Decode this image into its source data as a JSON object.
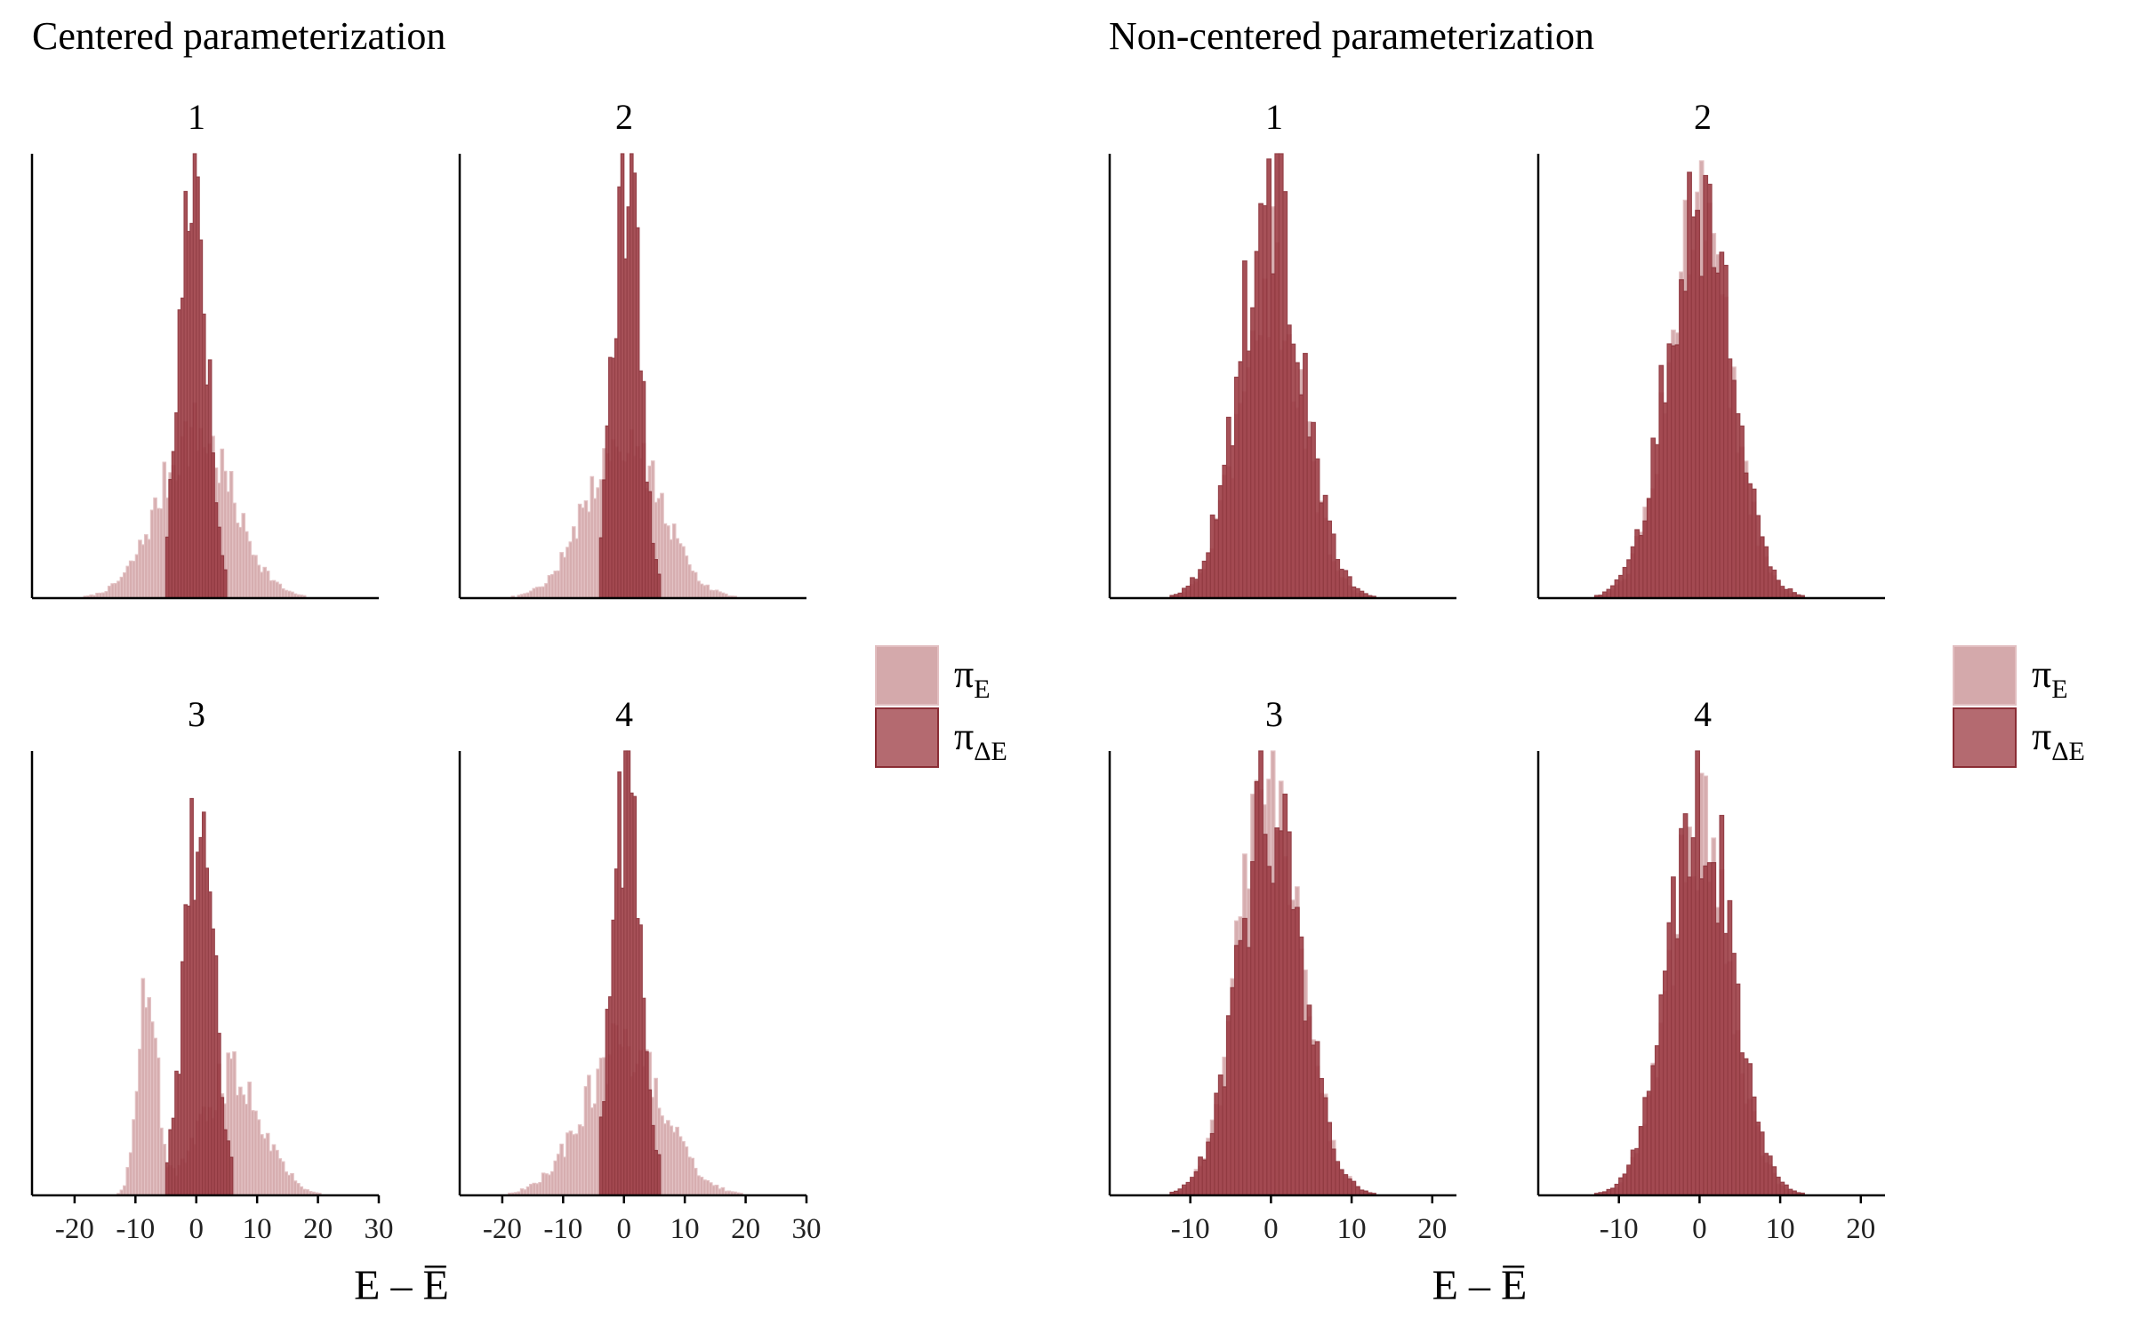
{
  "colors": {
    "pi_E_fill": "#d4a9ab",
    "pi_E_stroke": "#e2bfc1",
    "pi_dE_fill": "#9e3f47",
    "pi_dE_stroke": "#8a2d35",
    "axis": "#000000"
  },
  "legend": {
    "items": [
      {
        "symbol": "π",
        "sub": "E",
        "color_key": "pi_E"
      },
      {
        "symbol": "π",
        "sub": "ΔE",
        "color_key": "pi_dE"
      }
    ]
  },
  "chart_data": [
    {
      "type": "histogram",
      "title": "Centered parameterization",
      "xlabel": "E – E̅",
      "xlim": [
        -27,
        30
      ],
      "xticks": [
        -20,
        -10,
        0,
        10,
        20,
        30
      ],
      "xtick_labels": [
        "-20",
        "-10",
        "0",
        "10",
        "20",
        "30"
      ],
      "y_axis_labels": false,
      "bin_width": 0.5,
      "legend": "right",
      "facets": [
        {
          "label": "1",
          "series": [
            {
              "name": "π_E",
              "shape": "normal",
              "mean": 0,
              "sd": 6.0,
              "peak": 0.37,
              "range": [
                -19,
                23
              ]
            },
            {
              "name": "π_ΔE",
              "shape": "normal",
              "mean": -0.5,
              "sd": 2.2,
              "peak": 1.0,
              "range": [
                -5,
                5
              ]
            }
          ]
        },
        {
          "label": "2",
          "series": [
            {
              "name": "π_E",
              "shape": "normal",
              "mean": 0,
              "sd": 6.0,
              "peak": 0.37,
              "range": [
                -19,
                23
              ]
            },
            {
              "name": "π_ΔE",
              "shape": "normal",
              "mean": 0.5,
              "sd": 2.2,
              "peak": 0.97,
              "range": [
                -4,
                6
              ]
            }
          ]
        },
        {
          "label": "3",
          "series": [
            {
              "name": "π_E",
              "shape": "bimodal",
              "means": [
                -8,
                6
              ],
              "sds": [
                1.5,
                5.0
              ],
              "peaks": [
                0.53,
                0.27
              ],
              "range": [
                -19,
                23
              ]
            },
            {
              "name": "π_ΔE",
              "shape": "normal",
              "mean": 0.5,
              "sd": 2.4,
              "peak": 0.87,
              "range": [
                -5,
                6
              ]
            }
          ]
        },
        {
          "label": "4",
          "series": [
            {
              "name": "π_E",
              "shape": "normal",
              "mean": 0,
              "sd": 6.5,
              "peak": 0.33,
              "range": [
                -19,
                23
              ]
            },
            {
              "name": "π_ΔE",
              "shape": "normal",
              "mean": 0.5,
              "sd": 2.4,
              "peak": 0.9,
              "range": [
                -4,
                6
              ]
            }
          ]
        }
      ]
    },
    {
      "type": "histogram",
      "title": "Non-centered parameterization",
      "xlabel": "E – E̅",
      "xlim": [
        -20,
        23
      ],
      "xticks": [
        -10,
        0,
        10,
        20
      ],
      "xtick_labels": [
        "-10",
        "0",
        "10",
        "20"
      ],
      "y_axis_labels": false,
      "bin_width": 0.5,
      "legend": "right",
      "facets": [
        {
          "label": "1",
          "series": [
            {
              "name": "π_E",
              "shape": "normal",
              "mean": 0,
              "sd": 3.8,
              "peak": 0.73,
              "range": [
                -14,
                17
              ]
            },
            {
              "name": "π_ΔE",
              "shape": "normal",
              "mean": 0,
              "sd": 3.9,
              "peak": 0.9,
              "range": [
                -14,
                15
              ]
            }
          ]
        },
        {
          "label": "2",
          "series": [
            {
              "name": "π_E",
              "shape": "normal",
              "mean": 0,
              "sd": 3.9,
              "peak": 0.82,
              "range": [
                -14,
                17
              ]
            },
            {
              "name": "π_ΔE",
              "shape": "normal",
              "mean": 0,
              "sd": 4.0,
              "peak": 0.9,
              "range": [
                -14,
                15
              ]
            }
          ]
        },
        {
          "label": "3",
          "series": [
            {
              "name": "π_E",
              "shape": "normal",
              "mean": 0,
              "sd": 3.8,
              "peak": 0.95,
              "range": [
                -14,
                17
              ]
            },
            {
              "name": "π_ΔE",
              "shape": "normal",
              "mean": 0,
              "sd": 3.9,
              "peak": 0.88,
              "range": [
                -14,
                15
              ]
            }
          ]
        },
        {
          "label": "4",
          "series": [
            {
              "name": "π_E",
              "shape": "normal",
              "mean": 0,
              "sd": 3.8,
              "peak": 0.8,
              "range": [
                -14,
                17
              ]
            },
            {
              "name": "π_ΔE",
              "shape": "normal",
              "mean": 0,
              "sd": 3.9,
              "peak": 0.9,
              "range": [
                -14,
                15
              ]
            }
          ]
        }
      ]
    }
  ]
}
